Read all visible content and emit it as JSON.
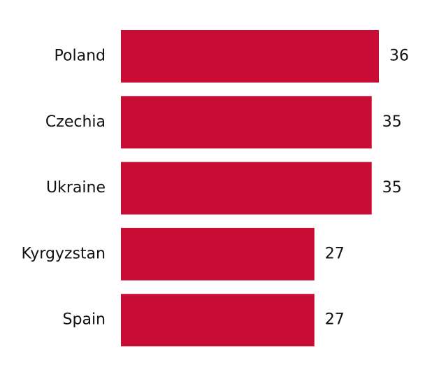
{
  "chart_data": {
    "type": "bar",
    "orientation": "horizontal",
    "categories": [
      "Poland",
      "Czechia",
      "Ukraine",
      "Kyrgyzstan",
      "Spain"
    ],
    "values": [
      36,
      35,
      35,
      27,
      27
    ],
    "value_labels": [
      "36",
      "35",
      "35",
      "27",
      "27"
    ],
    "xlim": [
      0,
      36
    ],
    "grid": false,
    "legend": "none",
    "bar_color": "#c90c34"
  }
}
